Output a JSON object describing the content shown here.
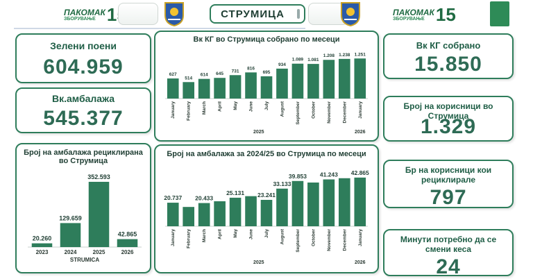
{
  "header": {
    "city": "СТРУМИЦА",
    "brand": "ПАКОМАК",
    "brand_sub": "ЗБОРУВАЊЕ",
    "anniv": "15",
    "anniv_small": "години"
  },
  "colors": {
    "bar": "#2e7d5b",
    "border": "#2e7d5b",
    "text": "#1f3e33"
  },
  "kpis": {
    "green_points": {
      "label": "Зелени поени",
      "value": "604.959"
    },
    "packaging": {
      "label": "Вк.амбалажа",
      "value": "545.377"
    },
    "kg_collected": {
      "label": "Вк КГ собрано",
      "value": "15.850"
    },
    "users": {
      "label": "Број на корисници во Струмица",
      "value": "1.329"
    },
    "recycling_users": {
      "label": "Бр на корисници кои рециклирале",
      "value": "797"
    },
    "minutes": {
      "label": "Минути потребно да се смени кеса",
      "value": "24"
    }
  },
  "chart_data": [
    {
      "type": "bar",
      "title": "Вк КГ во Струмица собрано по месеци",
      "categories": [
        "January",
        "February",
        "March",
        "April",
        "May",
        "June",
        "July",
        "August",
        "September",
        "October",
        "November",
        "December",
        "January"
      ],
      "values": [
        627,
        514,
        614,
        645,
        731,
        816,
        695,
        934,
        1089,
        1081,
        1208,
        1238,
        1251
      ],
      "labels": [
        "627",
        "514",
        "614",
        "645",
        "731",
        "816",
        "695",
        "934",
        "1.089",
        "1.081",
        "1.208",
        "1.238",
        "1.251"
      ],
      "year_labels": [
        "2025",
        "2026"
      ],
      "ylim": [
        0,
        1300
      ]
    },
    {
      "type": "bar",
      "title": "Број на амбалажа рециклирана во Струмица",
      "categories": [
        "2023",
        "2024",
        "2025",
        "2026"
      ],
      "values": [
        20260,
        129659,
        352593,
        42865
      ],
      "labels": [
        "20.260",
        "129.659",
        "352.593",
        "42.865"
      ],
      "xlabel": "STRUMICA",
      "ylim": [
        0,
        360000
      ]
    },
    {
      "type": "bar",
      "title": "Број на амбалажа за 2024/25 во Струмица по месеци",
      "categories": [
        "January",
        "February",
        "March",
        "April",
        "May",
        "June",
        "July",
        "August",
        "September",
        "October",
        "November",
        "December",
        "January"
      ],
      "values": [
        20737,
        17000,
        20433,
        22000,
        25131,
        26500,
        23241,
        33133,
        39853,
        38500,
        41243,
        42300,
        42865
      ],
      "labels": [
        "20.737",
        "",
        "20.433",
        "",
        "25.131",
        "",
        "23.241",
        "33.133",
        "39.853",
        "",
        "41.243",
        "",
        "42.865"
      ],
      "year_labels": [
        "2025",
        "2026"
      ],
      "ylim": [
        0,
        44000
      ]
    }
  ]
}
